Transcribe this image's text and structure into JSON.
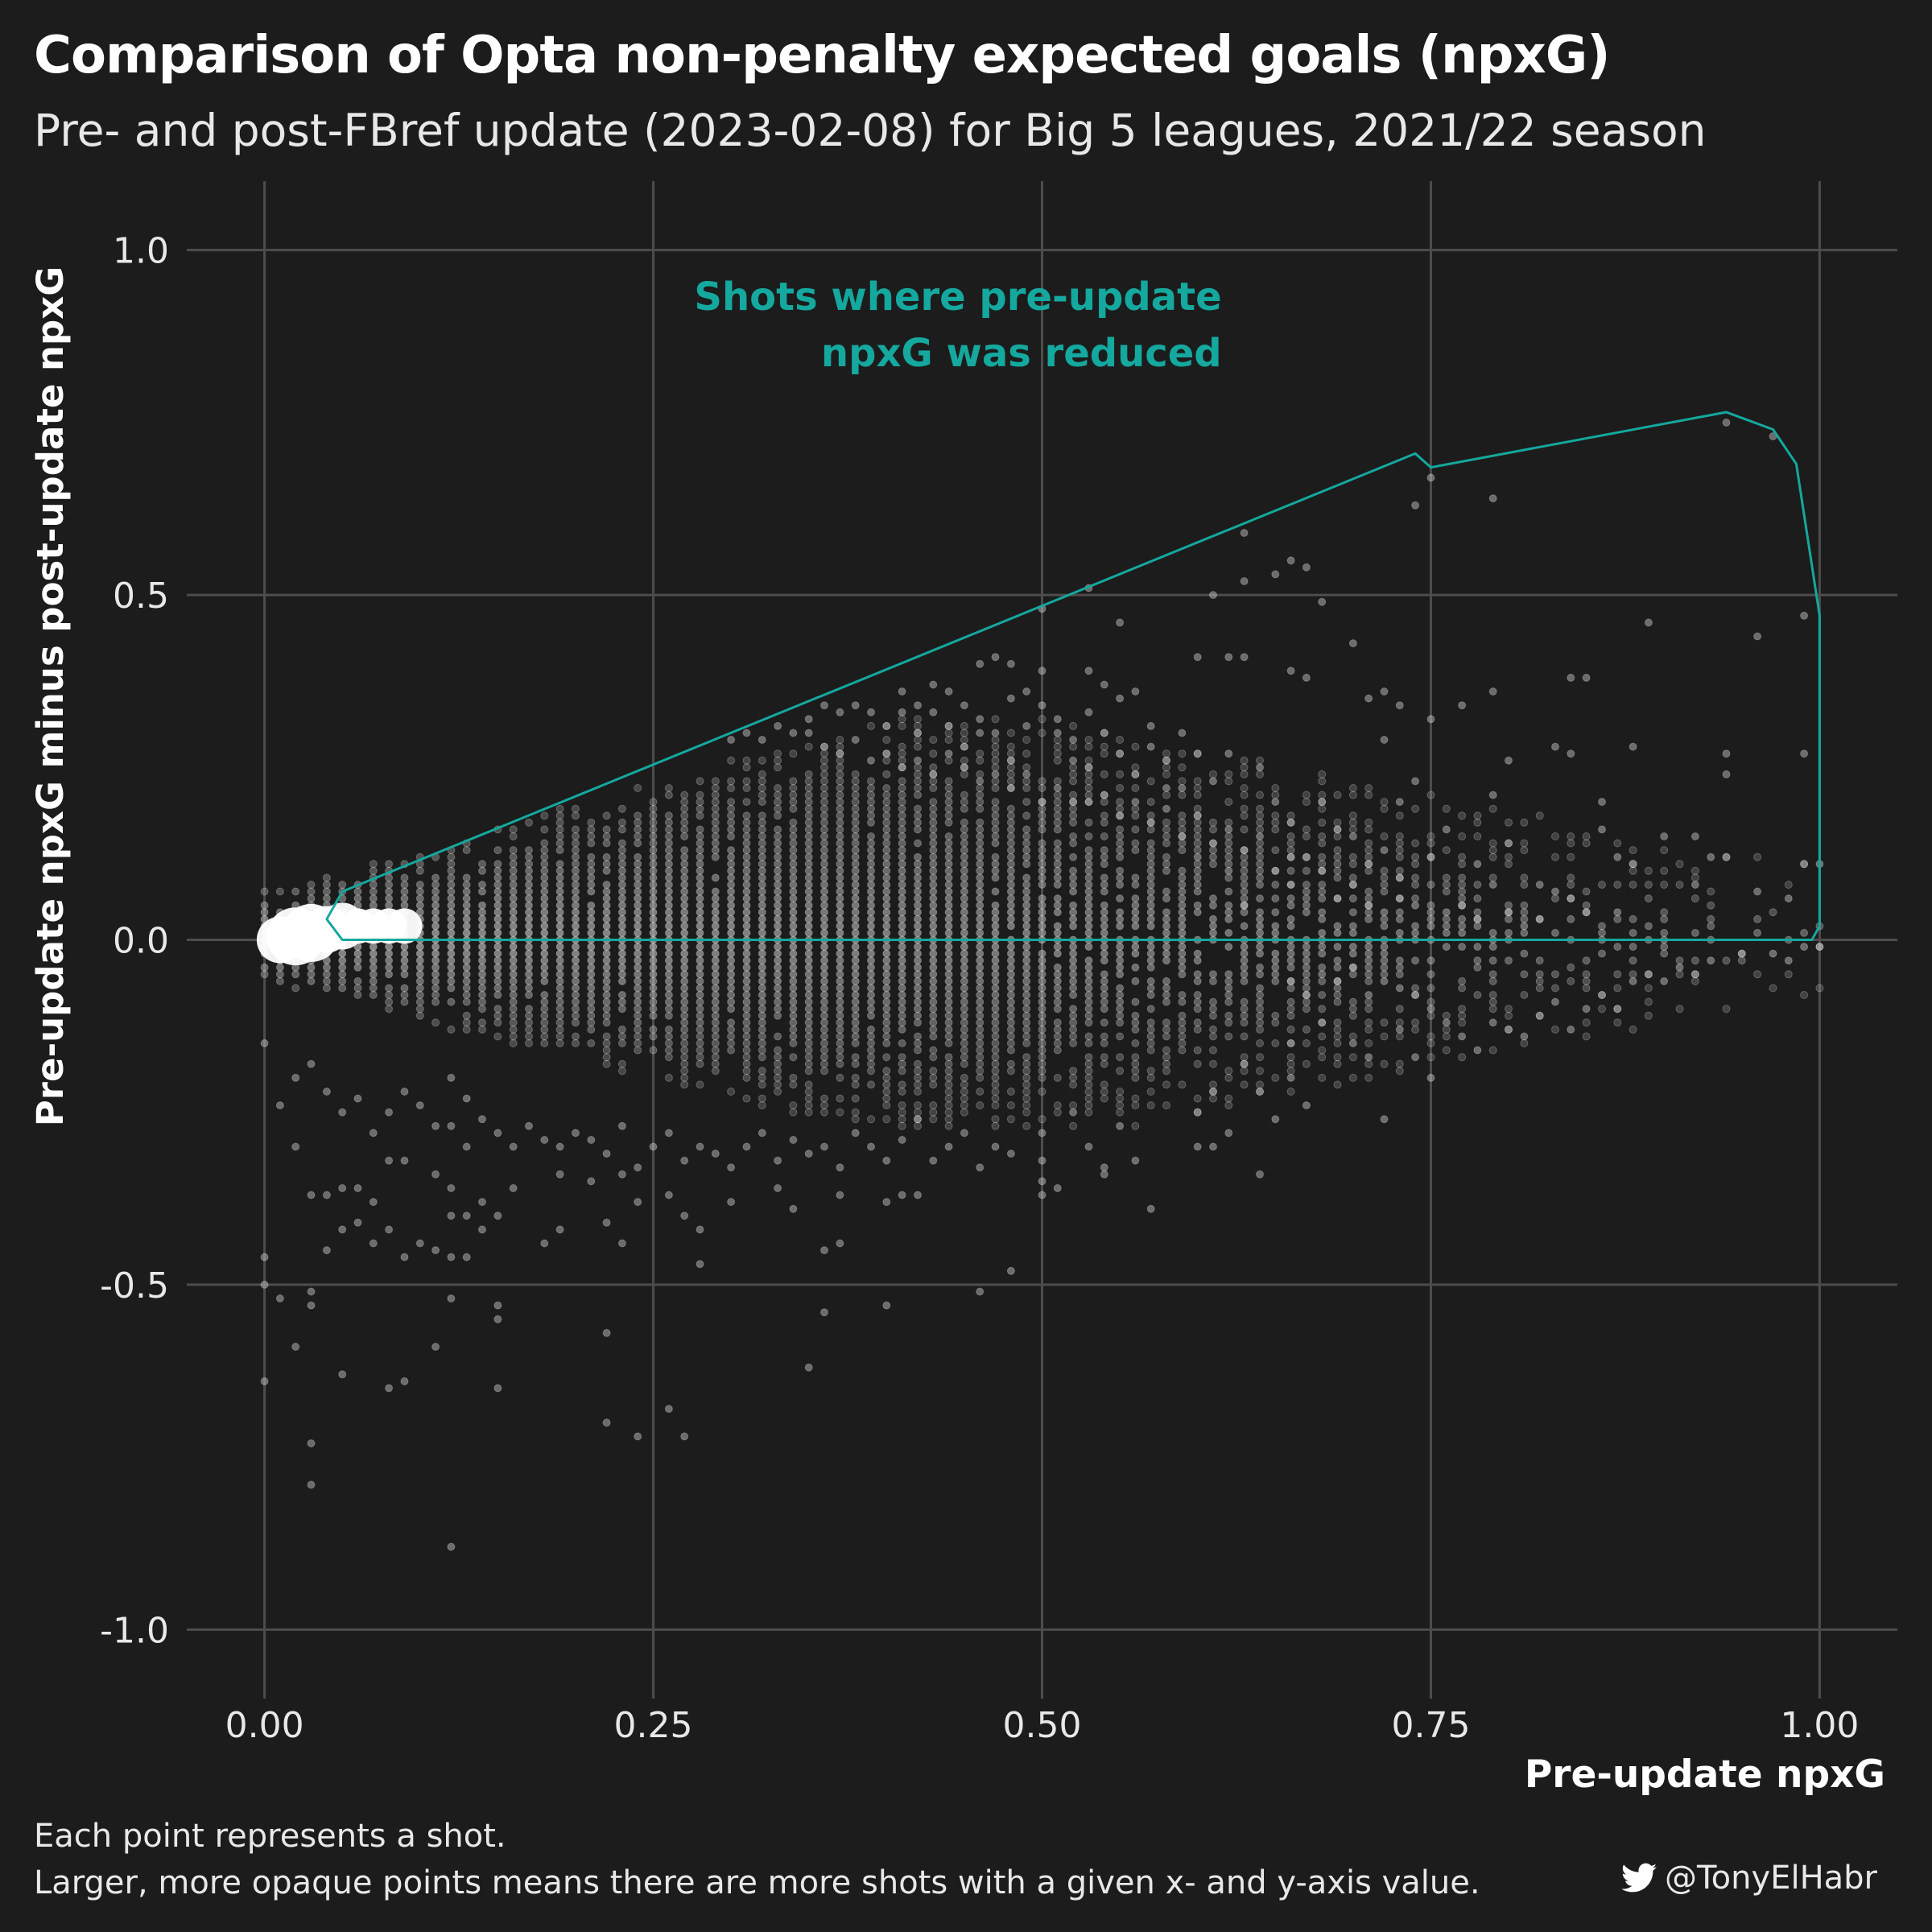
{
  "colors": {
    "background": "#1c1c1c",
    "grid": "#4d4d4d",
    "point": "#cfcfcf",
    "annotation": "#14a89e",
    "text": "#ffffff"
  },
  "chart_data": {
    "type": "scatter",
    "title": "Comparison of Opta non-penalty expected goals (npxG)",
    "subtitle": "Pre- and post-FBref update (2023-02-08) for Big 5 leagues, 2021/22 season",
    "xlabel": "Pre-update npxG",
    "ylabel": "Pre-update npxG minus post-update npxG",
    "xlim": [
      -0.05,
      1.05
    ],
    "ylim": [
      -1.1,
      1.1
    ],
    "x_ticks": [
      0,
      0.25,
      0.5,
      0.75,
      1
    ],
    "x_tick_labels": [
      "0.00",
      "0.25",
      "0.50",
      "0.75",
      "1.00"
    ],
    "y_ticks": [
      -1,
      -0.5,
      0,
      0.5,
      1
    ],
    "y_tick_labels": [
      "-1.0",
      "-0.5",
      "0.0",
      "0.5",
      "1.0"
    ],
    "grid": true,
    "legend": "none",
    "annotation": {
      "text_lines": [
        "Shots where pre-update",
        "npxG was reduced"
      ],
      "anchor": [
        0.6,
        0.93
      ]
    },
    "hull_polygon": [
      [
        0.05,
        0.07
      ],
      [
        0.74,
        0.705
      ],
      [
        0.75,
        0.685
      ],
      [
        0.94,
        0.765
      ],
      [
        0.97,
        0.74
      ],
      [
        0.985,
        0.69
      ],
      [
        1.0,
        0.47
      ],
      [
        1.0,
        0.02
      ],
      [
        0.995,
        0.0
      ],
      [
        0.05,
        0.0
      ],
      [
        0.04,
        0.03
      ],
      [
        0.05,
        0.07
      ]
    ],
    "dense_points": [
      [
        0.01,
        0.0,
        3
      ],
      [
        0.02,
        0.005,
        4
      ],
      [
        0.03,
        0.01,
        4
      ],
      [
        0.04,
        0.015,
        3
      ],
      [
        0.05,
        0.02,
        3
      ],
      [
        0.06,
        0.02,
        2
      ],
      [
        0.07,
        0.02,
        2
      ],
      [
        0.08,
        0.02,
        2
      ],
      [
        0.09,
        0.02,
        2
      ]
    ],
    "points": [
      [
        0.74,
        0.63
      ],
      [
        0.75,
        0.67
      ],
      [
        0.79,
        0.64
      ],
      [
        0.63,
        0.59
      ],
      [
        0.66,
        0.55
      ],
      [
        0.67,
        0.54
      ],
      [
        0.65,
        0.53
      ],
      [
        0.61,
        0.5
      ],
      [
        0.53,
        0.51
      ],
      [
        0.5,
        0.48
      ],
      [
        0.55,
        0.46
      ],
      [
        0.63,
        0.52
      ],
      [
        0.68,
        0.49
      ],
      [
        0.94,
        0.75
      ],
      [
        0.97,
        0.73
      ],
      [
        0.99,
        0.47
      ],
      [
        0.89,
        0.46
      ],
      [
        0.96,
        0.44
      ],
      [
        0.7,
        0.43
      ],
      [
        0.72,
        0.36
      ],
      [
        0.47,
        0.41
      ],
      [
        0.46,
        0.4
      ],
      [
        0.48,
        0.4
      ],
      [
        0.53,
        0.39
      ],
      [
        0.56,
        0.36
      ],
      [
        0.6,
        0.41
      ],
      [
        0.62,
        0.41
      ],
      [
        0.63,
        0.41
      ],
      [
        0.67,
        0.38
      ],
      [
        0.66,
        0.39
      ],
      [
        0.71,
        0.35
      ],
      [
        0.73,
        0.34
      ],
      [
        0.84,
        0.38
      ],
      [
        0.85,
        0.38
      ],
      [
        0.79,
        0.36
      ],
      [
        0.77,
        0.34
      ],
      [
        0.88,
        0.28
      ],
      [
        0.94,
        0.27
      ],
      [
        0.99,
        0.27
      ],
      [
        0.83,
        0.28
      ],
      [
        0.84,
        0.27
      ],
      [
        0.75,
        0.32
      ],
      [
        0.72,
        0.29
      ],
      [
        0.74,
        0.23
      ],
      [
        0.76,
        0.16
      ],
      [
        0.73,
        0.2
      ],
      [
        0.8,
        0.26
      ],
      [
        0.79,
        0.21
      ],
      [
        0.8,
        0.14
      ],
      [
        0.86,
        0.2
      ],
      [
        0.86,
        0.16
      ],
      [
        0.87,
        0.12
      ],
      [
        0.9,
        0.15
      ],
      [
        0.94,
        0.24
      ],
      [
        0.92,
        0.15
      ],
      [
        0.93,
        0.12
      ],
      [
        0.96,
        0.07
      ],
      [
        1.0,
        0.11
      ],
      [
        0.99,
        0.11
      ],
      [
        0.98,
        0.06
      ],
      [
        0.94,
        0.12
      ],
      [
        0.92,
        0.08
      ],
      [
        0.88,
        0.11
      ],
      [
        0.78,
        0.11
      ],
      [
        0.79,
        0.08
      ],
      [
        0.82,
        0.08
      ],
      [
        0.83,
        0.07
      ],
      [
        0.84,
        0.06
      ],
      [
        0.85,
        0.04
      ],
      [
        0.87,
        0.04
      ],
      [
        0.72,
        0.13
      ],
      [
        0.73,
        0.09
      ],
      [
        0.74,
        0.05
      ],
      [
        0.75,
        0.12
      ],
      [
        0.7,
        0.15
      ],
      [
        0.71,
        0.11
      ],
      [
        0.68,
        0.2
      ],
      [
        0.69,
        0.16
      ],
      [
        0.66,
        0.17
      ],
      [
        0.66,
        0.12
      ],
      [
        0.64,
        0.25
      ],
      [
        0.65,
        0.2
      ],
      [
        0.62,
        0.27
      ],
      [
        0.61,
        0.23
      ],
      [
        0.6,
        0.27
      ],
      [
        0.59,
        0.3
      ],
      [
        0.58,
        0.19
      ],
      [
        0.57,
        0.28
      ],
      [
        0.56,
        0.24
      ],
      [
        0.55,
        0.27
      ],
      [
        0.54,
        0.3
      ],
      [
        0.53,
        0.33
      ],
      [
        0.52,
        0.29
      ],
      [
        0.5,
        0.34
      ],
      [
        0.51,
        0.3
      ],
      [
        0.49,
        0.31
      ],
      [
        0.48,
        0.26
      ],
      [
        0.47,
        0.3
      ],
      [
        0.46,
        0.32
      ],
      [
        0.45,
        0.28
      ],
      [
        0.44,
        0.31
      ],
      [
        0.43,
        0.33
      ],
      [
        0.42,
        0.3
      ],
      [
        0.41,
        0.33
      ],
      [
        0.4,
        0.31
      ],
      [
        0.39,
        0.33
      ],
      [
        0.38,
        0.34
      ],
      [
        0.37,
        0.33
      ],
      [
        0.36,
        0.34
      ],
      [
        0.35,
        0.32
      ],
      [
        0.34,
        0.3
      ],
      [
        0.33,
        0.31
      ],
      [
        0.32,
        0.29
      ],
      [
        0.31,
        0.3
      ],
      [
        0.3,
        0.29
      ],
      [
        0.35,
        0.3
      ],
      [
        0.36,
        0.28
      ],
      [
        0.37,
        0.27
      ],
      [
        0.38,
        0.29
      ],
      [
        0.39,
        0.26
      ],
      [
        0.4,
        0.27
      ],
      [
        0.41,
        0.25
      ],
      [
        0.42,
        0.26
      ],
      [
        0.43,
        0.24
      ],
      [
        0.44,
        0.27
      ],
      [
        0.45,
        0.25
      ],
      [
        0.46,
        0.23
      ],
      [
        0.47,
        0.24
      ],
      [
        0.48,
        0.22
      ],
      [
        0.49,
        0.24
      ],
      [
        0.5,
        0.2
      ],
      [
        0.51,
        0.22
      ],
      [
        0.52,
        0.2
      ],
      [
        0.53,
        0.25
      ],
      [
        0.54,
        0.21
      ],
      [
        0.55,
        0.18
      ],
      [
        0.56,
        0.2
      ],
      [
        0.57,
        0.17
      ],
      [
        0.58,
        0.22
      ],
      [
        0.59,
        0.15
      ],
      [
        0.6,
        0.18
      ],
      [
        0.61,
        0.14
      ],
      [
        0.62,
        0.16
      ],
      [
        0.63,
        0.13
      ],
      [
        0.64,
        0.15
      ],
      [
        0.65,
        0.1
      ],
      [
        0.66,
        0.08
      ],
      [
        0.67,
        0.12
      ],
      [
        0.68,
        0.1
      ],
      [
        0.69,
        0.06
      ],
      [
        0.7,
        0.08
      ],
      [
        0.71,
        0.05
      ],
      [
        0.72,
        0.04
      ],
      [
        0.73,
        0.06
      ],
      [
        0.76,
        0.04
      ],
      [
        0.77,
        0.05
      ],
      [
        0.78,
        0.03
      ],
      [
        0.8,
        0.04
      ],
      [
        0.81,
        0.02
      ],
      [
        0.82,
        0.03
      ],
      [
        0.5,
        -0.28
      ],
      [
        0.52,
        -0.25
      ],
      [
        0.53,
        -0.3
      ],
      [
        0.55,
        -0.27
      ],
      [
        0.54,
        -0.33
      ],
      [
        0.5,
        -0.35
      ],
      [
        0.5,
        -0.37
      ],
      [
        0.51,
        -0.36
      ],
      [
        0.48,
        -0.31
      ],
      [
        0.47,
        -0.3
      ],
      [
        0.46,
        -0.33
      ],
      [
        0.45,
        -0.28
      ],
      [
        0.44,
        -0.3
      ],
      [
        0.43,
        -0.32
      ],
      [
        0.42,
        -0.26
      ],
      [
        0.41,
        -0.29
      ],
      [
        0.4,
        -0.32
      ],
      [
        0.39,
        -0.3
      ],
      [
        0.38,
        -0.28
      ],
      [
        0.37,
        -0.33
      ],
      [
        0.36,
        -0.3
      ],
      [
        0.35,
        -0.31
      ],
      [
        0.34,
        -0.29
      ],
      [
        0.33,
        -0.32
      ],
      [
        0.32,
        -0.28
      ],
      [
        0.31,
        -0.3
      ],
      [
        0.3,
        -0.33
      ],
      [
        0.29,
        -0.31
      ],
      [
        0.28,
        -0.3
      ],
      [
        0.27,
        -0.32
      ],
      [
        0.26,
        -0.28
      ],
      [
        0.25,
        -0.3
      ],
      [
        0.24,
        -0.33
      ],
      [
        0.23,
        -0.27
      ],
      [
        0.22,
        -0.31
      ],
      [
        0.21,
        -0.29
      ],
      [
        0.2,
        -0.28
      ],
      [
        0.19,
        -0.3
      ],
      [
        0.18,
        -0.29
      ],
      [
        0.17,
        -0.27
      ],
      [
        0.16,
        -0.3
      ],
      [
        0.15,
        -0.28
      ],
      [
        0.14,
        -0.26
      ],
      [
        0.13,
        -0.3
      ],
      [
        0.12,
        -0.27
      ],
      [
        0.41,
        -0.37
      ],
      [
        0.42,
        -0.37
      ],
      [
        0.4,
        -0.38
      ],
      [
        0.37,
        -0.37
      ],
      [
        0.33,
        -0.36
      ],
      [
        0.3,
        -0.38
      ],
      [
        0.26,
        -0.37
      ],
      [
        0.23,
        -0.34
      ],
      [
        0.21,
        -0.35
      ],
      [
        0.19,
        -0.34
      ],
      [
        0.16,
        -0.36
      ],
      [
        0.15,
        -0.4
      ],
      [
        0.14,
        -0.38
      ],
      [
        0.12,
        -0.36
      ],
      [
        0.11,
        -0.34
      ],
      [
        0.09,
        -0.32
      ],
      [
        0.08,
        -0.32
      ],
      [
        0.07,
        -0.38
      ],
      [
        0.06,
        -0.36
      ],
      [
        0.05,
        -0.36
      ],
      [
        0.06,
        -0.41
      ],
      [
        0.08,
        -0.42
      ],
      [
        0.09,
        -0.46
      ],
      [
        0.07,
        -0.44
      ],
      [
        0.05,
        -0.42
      ],
      [
        0.04,
        -0.37
      ],
      [
        0.03,
        -0.37
      ],
      [
        0.04,
        -0.45
      ],
      [
        0.1,
        -0.44
      ],
      [
        0.11,
        -0.45
      ],
      [
        0.12,
        -0.4
      ],
      [
        0.13,
        -0.4
      ],
      [
        0.14,
        -0.42
      ],
      [
        0.18,
        -0.44
      ],
      [
        0.19,
        -0.42
      ],
      [
        0.22,
        -0.41
      ],
      [
        0.23,
        -0.44
      ],
      [
        0.24,
        -0.38
      ],
      [
        0.28,
        -0.42
      ],
      [
        0.28,
        -0.47
      ],
      [
        0.27,
        -0.4
      ],
      [
        0.34,
        -0.39
      ],
      [
        0.36,
        -0.45
      ],
      [
        0.37,
        -0.44
      ],
      [
        0.36,
        -0.54
      ],
      [
        0.35,
        -0.62
      ],
      [
        0.4,
        -0.53
      ],
      [
        0.46,
        -0.51
      ],
      [
        0.48,
        -0.48
      ],
      [
        0.57,
        -0.39
      ],
      [
        0.5,
        -0.32
      ],
      [
        0.54,
        -0.34
      ],
      [
        0.56,
        -0.32
      ],
      [
        0.6,
        -0.3
      ],
      [
        0.61,
        -0.3
      ],
      [
        0.64,
        -0.34
      ],
      [
        0.62,
        -0.28
      ],
      [
        0.65,
        -0.26
      ],
      [
        0.66,
        -0.2
      ],
      [
        0.67,
        -0.24
      ],
      [
        0.6,
        -0.25
      ],
      [
        0.61,
        -0.22
      ],
      [
        0.63,
        -0.18
      ],
      [
        0.64,
        -0.22
      ],
      [
        0.66,
        -0.15
      ],
      [
        0.68,
        -0.12
      ],
      [
        0.7,
        -0.15
      ],
      [
        0.71,
        -0.17
      ],
      [
        0.72,
        -0.26
      ],
      [
        0.73,
        -0.13
      ],
      [
        0.74,
        -0.17
      ],
      [
        0.75,
        -0.2
      ],
      [
        0.76,
        -0.12
      ],
      [
        0.77,
        -0.14
      ],
      [
        0.78,
        -0.16
      ],
      [
        0.79,
        -0.12
      ],
      [
        0.8,
        -0.13
      ],
      [
        0.81,
        -0.14
      ],
      [
        0.82,
        -0.11
      ],
      [
        0.83,
        -0.09
      ],
      [
        0.84,
        -0.13
      ],
      [
        0.85,
        -0.1
      ],
      [
        0.86,
        -0.08
      ],
      [
        0.87,
        -0.1
      ],
      [
        0.88,
        -0.06
      ],
      [
        0.89,
        -0.05
      ],
      [
        0.9,
        -0.06
      ],
      [
        0.91,
        -0.04
      ],
      [
        0.92,
        -0.05
      ],
      [
        0.93,
        -0.03
      ],
      [
        0.95,
        -0.02
      ],
      [
        0.97,
        -0.02
      ],
      [
        0.98,
        -0.03
      ],
      [
        0.99,
        -0.01
      ],
      [
        1.0,
        -0.01
      ],
      [
        0.75,
        -0.1
      ],
      [
        0.74,
        -0.08
      ],
      [
        0.73,
        -0.07
      ],
      [
        0.72,
        -0.06
      ],
      [
        0.71,
        -0.08
      ],
      [
        0.7,
        -0.04
      ],
      [
        0.69,
        -0.06
      ],
      [
        0.68,
        -0.05
      ],
      [
        0.67,
        -0.08
      ],
      [
        0.66,
        -0.06
      ],
      [
        0.0,
        -0.46
      ],
      [
        0.0,
        -0.5
      ],
      [
        0.01,
        -0.52
      ],
      [
        0.0,
        -0.64
      ],
      [
        0.02,
        -0.59
      ],
      [
        0.03,
        -0.51
      ],
      [
        0.03,
        -0.53
      ],
      [
        0.05,
        -0.63
      ],
      [
        0.08,
        -0.65
      ],
      [
        0.09,
        -0.64
      ],
      [
        0.11,
        -0.59
      ],
      [
        0.12,
        -0.52
      ],
      [
        0.12,
        -0.46
      ],
      [
        0.13,
        -0.46
      ],
      [
        0.15,
        -0.53
      ],
      [
        0.15,
        -0.55
      ],
      [
        0.15,
        -0.65
      ],
      [
        0.22,
        -0.57
      ],
      [
        0.22,
        -0.7
      ],
      [
        0.24,
        -0.72
      ],
      [
        0.26,
        -0.68
      ],
      [
        0.27,
        -0.72
      ],
      [
        0.03,
        -0.73
      ],
      [
        0.03,
        -0.79
      ],
      [
        0.12,
        -0.88
      ],
      [
        0.02,
        -0.3
      ],
      [
        0.01,
        -0.24
      ],
      [
        0.0,
        -0.15
      ],
      [
        0.02,
        -0.2
      ],
      [
        0.03,
        -0.18
      ],
      [
        0.04,
        -0.22
      ],
      [
        0.05,
        -0.25
      ],
      [
        0.06,
        -0.23
      ],
      [
        0.07,
        -0.28
      ],
      [
        0.08,
        -0.25
      ],
      [
        0.09,
        -0.22
      ],
      [
        0.1,
        -0.24
      ],
      [
        0.11,
        -0.27
      ],
      [
        0.12,
        -0.2
      ],
      [
        0.13,
        -0.23
      ],
      [
        0.5,
        0.39
      ],
      [
        0.49,
        0.36
      ],
      [
        0.51,
        0.32
      ],
      [
        0.48,
        0.35
      ],
      [
        0.45,
        0.34
      ],
      [
        0.46,
        0.3
      ],
      [
        0.44,
        0.36
      ],
      [
        0.43,
        0.37
      ],
      [
        0.42,
        0.34
      ],
      [
        0.41,
        0.36
      ],
      [
        0.55,
        0.35
      ],
      [
        0.54,
        0.37
      ],
      [
        0.52,
        0.26
      ],
      [
        0.53,
        0.2
      ],
      [
        0.57,
        0.31
      ],
      [
        0.58,
        0.26
      ],
      [
        0.59,
        0.22
      ],
      [
        0.6,
        0.12
      ],
      [
        0.62,
        0.1
      ],
      [
        0.63,
        0.05
      ]
    ]
  },
  "caption_lines": [
    "Each point represents a shot.",
    "Larger, more opaque points means there are more shots with a given x- and y-axis value."
  ],
  "credit": {
    "icon": "twitter-bird-icon",
    "handle": "@TonyElHabr"
  }
}
